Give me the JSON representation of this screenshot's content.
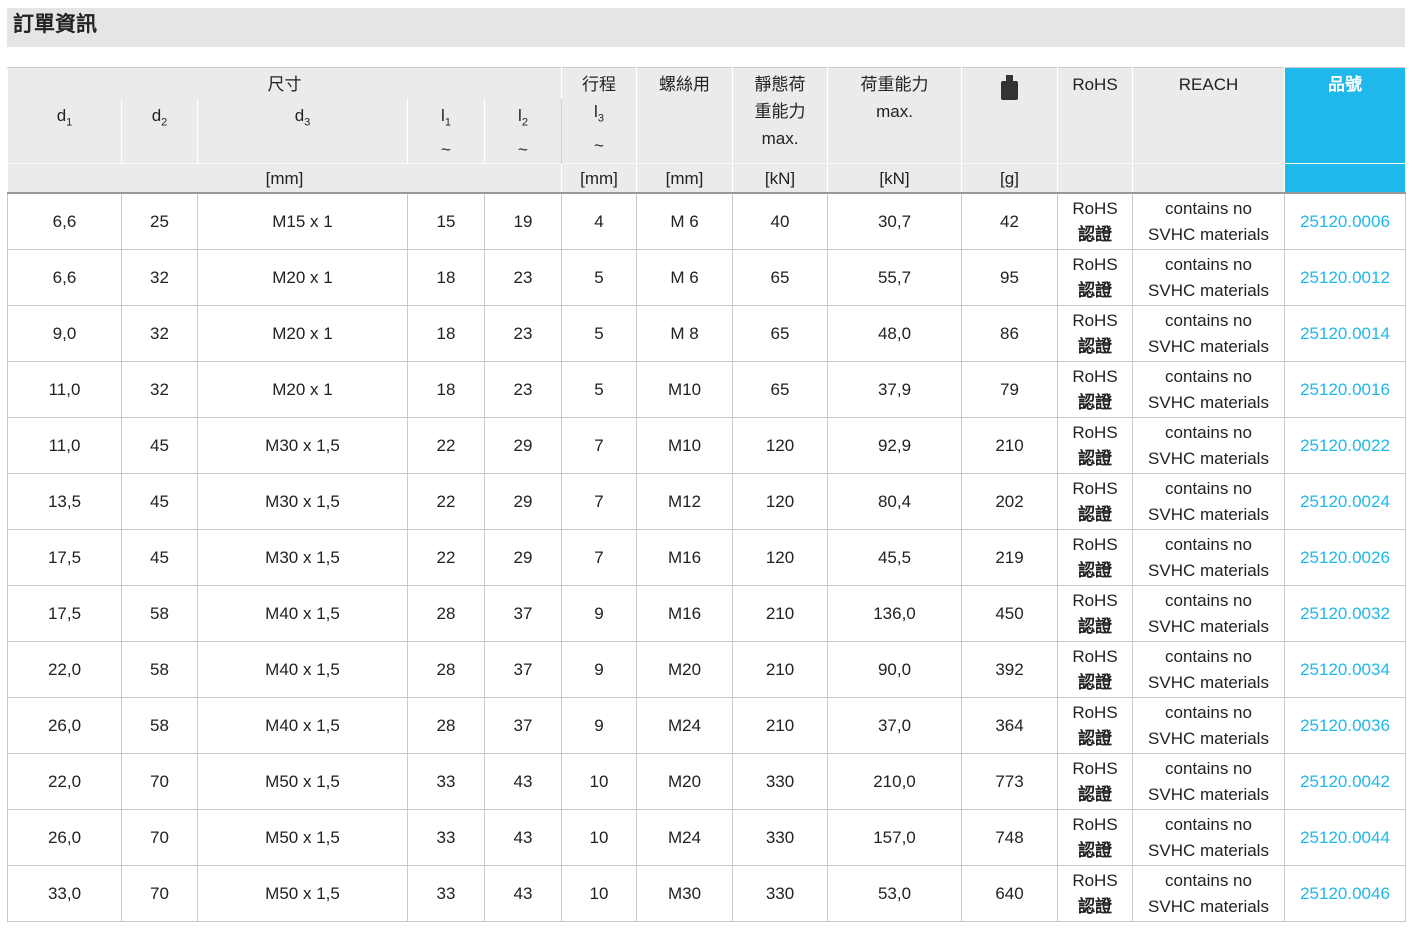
{
  "title": "訂單資訊",
  "header": {
    "dimensions": "尺寸",
    "d1": "d",
    "d1_sub": "1",
    "d2": "d",
    "d2_sub": "2",
    "d3": "d",
    "d3_sub": "3",
    "l1": "l",
    "l1_sub": "1",
    "l2": "l",
    "l2_sub": "2",
    "l3": "l",
    "l3_sub": "3",
    "tilde": "~",
    "stroke": "行程",
    "screw": "螺絲用",
    "static_load": "靜態荷重能力",
    "static_load_line1": "靜態荷",
    "static_load_line2": "重能力",
    "max": "max.",
    "load_capacity": "荷重能力",
    "weight_icon": "weight-icon",
    "rohs": "RoHS",
    "reach": "REACH",
    "part_no": "品號",
    "unit_mm": "[mm]",
    "unit_kn": "[kN]",
    "unit_g": "[g]"
  },
  "colors": {
    "accent": "#1eb8ea",
    "header_bg": "#ebebeb"
  },
  "rohs_text": [
    "RoHS",
    "認證"
  ],
  "reach_text": [
    "contains no",
    "SVHC materials"
  ],
  "rows": [
    [
      "6,6",
      "25",
      "M15 x 1",
      "15",
      "19",
      "4",
      "M  6",
      "40",
      "30,7",
      "42",
      "25120.0006"
    ],
    [
      "6,6",
      "32",
      "M20 x 1",
      "18",
      "23",
      "5",
      "M  6",
      "65",
      "55,7",
      "95",
      "25120.0012"
    ],
    [
      "9,0",
      "32",
      "M20 x 1",
      "18",
      "23",
      "5",
      "M  8",
      "65",
      "48,0",
      "86",
      "25120.0014"
    ],
    [
      "11,0",
      "32",
      "M20 x 1",
      "18",
      "23",
      "5",
      "M10",
      "65",
      "37,9",
      "79",
      "25120.0016"
    ],
    [
      "11,0",
      "45",
      "M30 x 1,5",
      "22",
      "29",
      "7",
      "M10",
      "120",
      "92,9",
      "210",
      "25120.0022"
    ],
    [
      "13,5",
      "45",
      "M30 x 1,5",
      "22",
      "29",
      "7",
      "M12",
      "120",
      "80,4",
      "202",
      "25120.0024"
    ],
    [
      "17,5",
      "45",
      "M30 x 1,5",
      "22",
      "29",
      "7",
      "M16",
      "120",
      "45,5",
      "219",
      "25120.0026"
    ],
    [
      "17,5",
      "58",
      "M40 x 1,5",
      "28",
      "37",
      "9",
      "M16",
      "210",
      "136,0",
      "450",
      "25120.0032"
    ],
    [
      "22,0",
      "58",
      "M40 x 1,5",
      "28",
      "37",
      "9",
      "M20",
      "210",
      "90,0",
      "392",
      "25120.0034"
    ],
    [
      "26,0",
      "58",
      "M40 x 1,5",
      "28",
      "37",
      "9",
      "M24",
      "210",
      "37,0",
      "364",
      "25120.0036"
    ],
    [
      "22,0",
      "70",
      "M50 x 1,5",
      "33",
      "43",
      "10",
      "M20",
      "330",
      "210,0",
      "773",
      "25120.0042"
    ],
    [
      "26,0",
      "70",
      "M50 x 1,5",
      "33",
      "43",
      "10",
      "M24",
      "330",
      "157,0",
      "748",
      "25120.0044"
    ],
    [
      "33,0",
      "70",
      "M50 x 1,5",
      "33",
      "43",
      "10",
      "M30",
      "330",
      "53,0",
      "640",
      "25120.0046"
    ]
  ]
}
